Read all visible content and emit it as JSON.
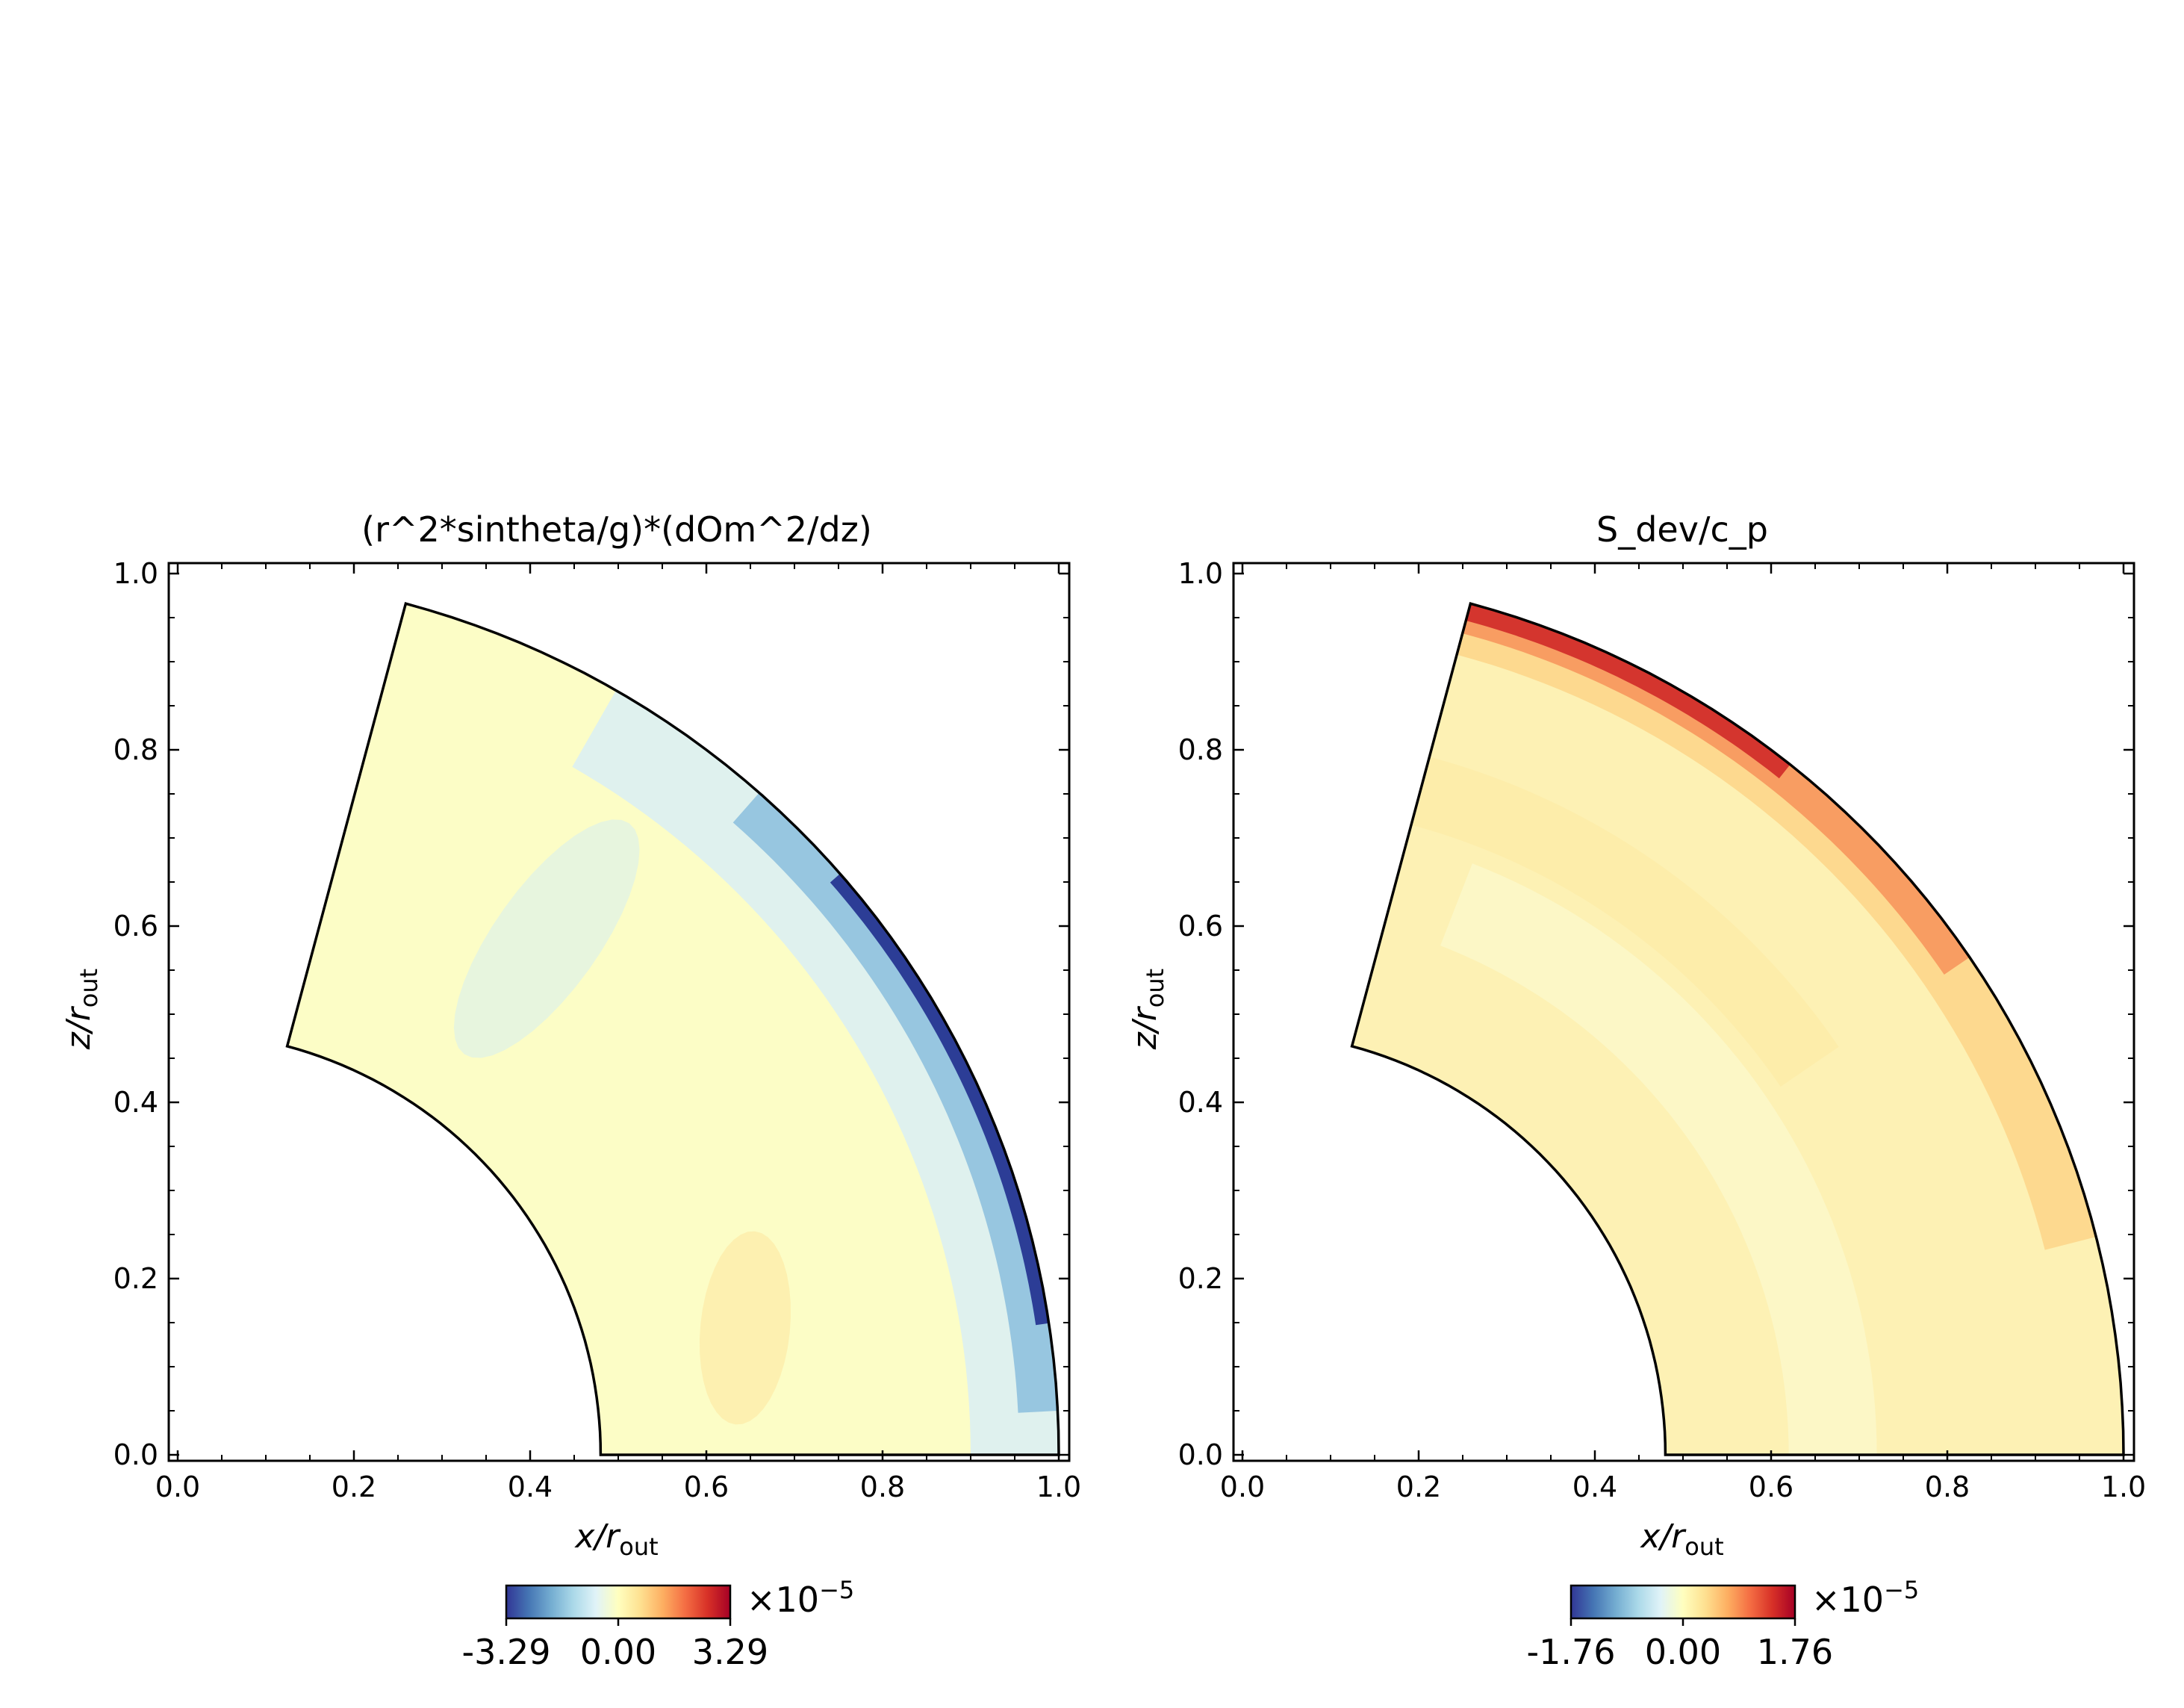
{
  "chart_data": [
    {
      "type": "heatmap",
      "geometry": "meridional wedge (spherical shell sector)",
      "title": "(r^2*sintheta/g)*(dOm^2/dz)",
      "xlabel_var": "x/r",
      "xlabel_sub": "out",
      "ylabel_var": "z/r",
      "ylabel_sub": "out",
      "xlim": [
        0.0,
        1.0
      ],
      "ylim": [
        0.0,
        1.0
      ],
      "xticks": [
        "0.0",
        "0.2",
        "0.4",
        "0.6",
        "0.8",
        "1.0"
      ],
      "yticks": [
        "0.0",
        "0.2",
        "0.4",
        "0.6",
        "0.8",
        "1.0"
      ],
      "r_inner": 0.48,
      "r_outer": 1.0,
      "theta_range_deg": [
        0,
        75
      ],
      "colormap": "RdYlBu_r",
      "colorbar": {
        "ticks": [
          "-3.29",
          "0.00",
          "3.29"
        ],
        "vmin": -3.29,
        "vmax": 3.29,
        "multiplier_base": "×10",
        "multiplier_exp": "−5"
      },
      "features": [
        {
          "name": "outer equatorial blue layer",
          "value_approx": -3.29
        },
        {
          "name": "mid-latitude weak negative band",
          "value_approx": -0.3
        },
        {
          "name": "low-latitude weak positive patch",
          "value_approx": 0.4
        }
      ]
    },
    {
      "type": "heatmap",
      "geometry": "meridional wedge (spherical shell sector)",
      "title": "S_dev/c_p",
      "xlabel_var": "x/r",
      "xlabel_sub": "out",
      "ylabel_var": "z/r",
      "ylabel_sub": "out",
      "xlim": [
        0.0,
        1.0
      ],
      "ylim": [
        0.0,
        1.0
      ],
      "xticks": [
        "0.0",
        "0.2",
        "0.4",
        "0.6",
        "0.8",
        "1.0"
      ],
      "yticks": [
        "0.0",
        "0.2",
        "0.4",
        "0.6",
        "0.8",
        "1.0"
      ],
      "r_inner": 0.48,
      "r_outer": 1.0,
      "theta_range_deg": [
        0,
        75
      ],
      "colormap": "RdYlBu_r",
      "colorbar": {
        "ticks": [
          "-1.76",
          "0.00",
          "1.76"
        ],
        "vmin": -1.76,
        "vmax": 1.76,
        "multiplier_base": "×10",
        "multiplier_exp": "−5"
      },
      "features": [
        {
          "name": "outer polar red boundary layer",
          "value_approx": 1.76
        },
        {
          "name": "interior mildly positive",
          "value_approx": 0.3
        }
      ]
    }
  ],
  "colormap_stops": [
    "#313695",
    "#4575b4",
    "#74add1",
    "#abd9e9",
    "#e0f3f8",
    "#ffffbf",
    "#fee090",
    "#fdae61",
    "#f46d43",
    "#d73027",
    "#a50026"
  ]
}
